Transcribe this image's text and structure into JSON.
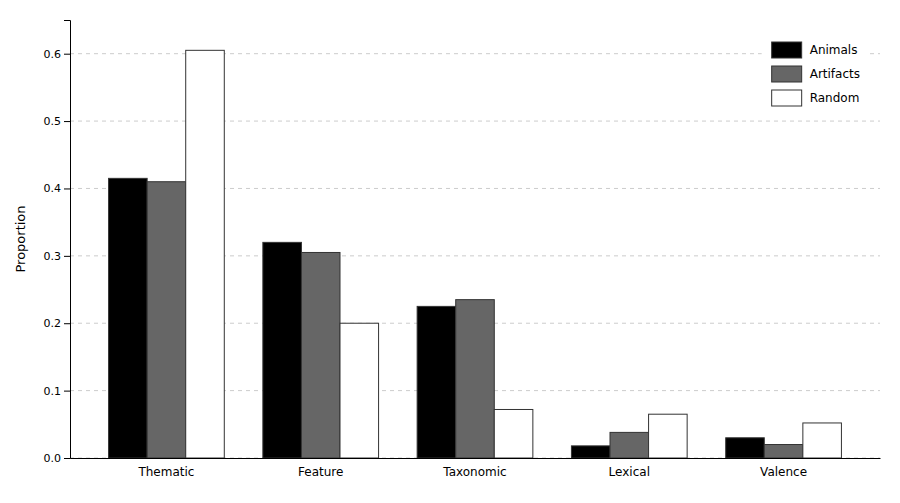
{
  "chart_data": {
    "type": "bar",
    "categories": [
      "Thematic",
      "Feature",
      "Taxonomic",
      "Lexical",
      "Valence"
    ],
    "series": [
      {
        "name": "Animals",
        "color": "#000000",
        "values": [
          0.415,
          0.32,
          0.225,
          0.018,
          0.03
        ]
      },
      {
        "name": "Artifacts",
        "color": "#666666",
        "values": [
          0.41,
          0.305,
          0.235,
          0.038,
          0.02
        ]
      },
      {
        "name": "Random",
        "color": "#ffffff",
        "values": [
          0.605,
          0.2,
          0.072,
          0.065,
          0.052
        ]
      }
    ],
    "ylabel": "Proportion",
    "ylim": [
      0,
      0.65
    ],
    "yticks": [
      {
        "value": 0,
        "label": "0.0"
      },
      0.1,
      0.2,
      0.3,
      0.4,
      0.5,
      0.6
    ],
    "grid": true,
    "legend": "upper right"
  }
}
